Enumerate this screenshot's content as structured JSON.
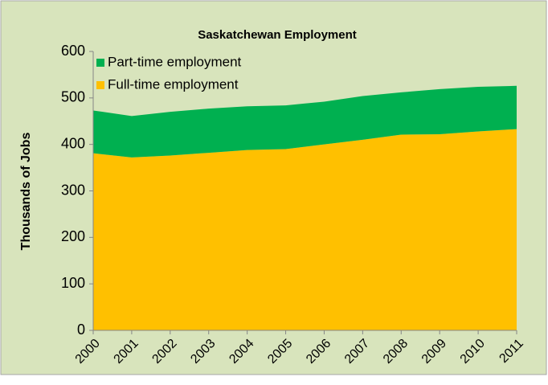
{
  "chart_data": {
    "type": "stacked_area",
    "title": "Saskatchewan Employment",
    "y_label": "Thousands of Jobs",
    "categories": [
      "2000",
      "2001",
      "2002",
      "2003",
      "2004",
      "2005",
      "2006",
      "2007",
      "2008",
      "2009",
      "2010",
      "2011"
    ],
    "series": [
      {
        "name": "Full-time employment",
        "color": "#ffc000",
        "values": [
          381,
          372,
          376,
          382,
          388,
          390,
          400,
          410,
          421,
          422,
          428,
          433
        ]
      },
      {
        "name": "Part-time employment",
        "color": "#00b050",
        "values": [
          92,
          89,
          94,
          95,
          94,
          94,
          92,
          94,
          91,
          97,
          96,
          93
        ]
      }
    ],
    "ylim": [
      0,
      600
    ],
    "yticks": [
      0,
      100,
      200,
      300,
      400,
      500,
      600
    ],
    "legend": "top-left",
    "background": "#d8e4bc"
  }
}
